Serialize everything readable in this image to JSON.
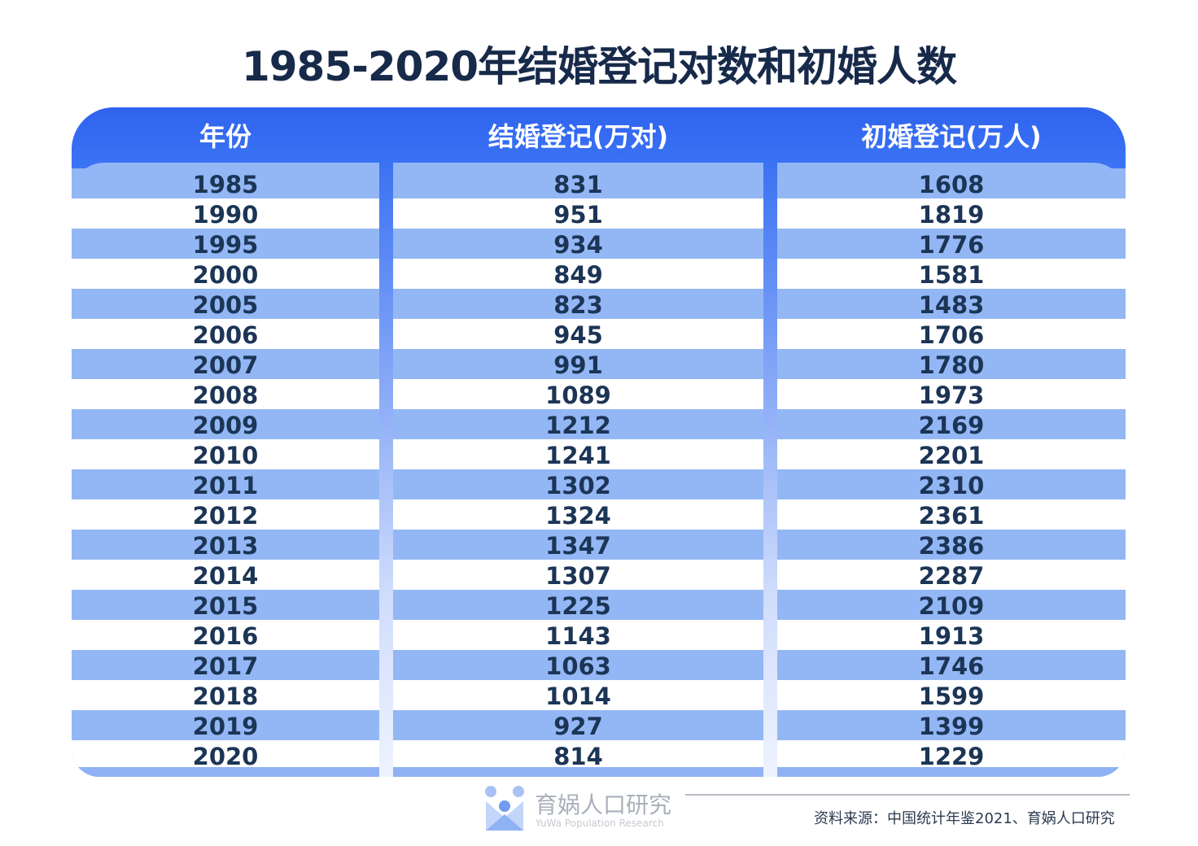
{
  "title": "1985-2020年结婚登记对数和初婚人数",
  "chart_data": {
    "type": "table",
    "title": "1985-2020年结婚登记对数和初婚人数",
    "columns": [
      "年份",
      "结婚登记(万对)",
      "初婚登记(万人)"
    ],
    "rows": [
      [
        "1985",
        "831",
        "1608"
      ],
      [
        "1990",
        "951",
        "1819"
      ],
      [
        "1995",
        "934",
        "1776"
      ],
      [
        "2000",
        "849",
        "1581"
      ],
      [
        "2005",
        "823",
        "1483"
      ],
      [
        "2006",
        "945",
        "1706"
      ],
      [
        "2007",
        "991",
        "1780"
      ],
      [
        "2008",
        "1089",
        "1973"
      ],
      [
        "2009",
        "1212",
        "2169"
      ],
      [
        "2010",
        "1241",
        "2201"
      ],
      [
        "2011",
        "1302",
        "2310"
      ],
      [
        "2012",
        "1324",
        "2361"
      ],
      [
        "2013",
        "1347",
        "2386"
      ],
      [
        "2014",
        "1307",
        "2287"
      ],
      [
        "2015",
        "1225",
        "2109"
      ],
      [
        "2016",
        "1143",
        "1913"
      ],
      [
        "2017",
        "1063",
        "1746"
      ],
      [
        "2018",
        "1014",
        "1599"
      ],
      [
        "2019",
        "927",
        "1399"
      ],
      [
        "2020",
        "814",
        "1229"
      ]
    ]
  },
  "colors": {
    "header": "#3b72f2",
    "stripe": "#93b7f5",
    "text": "#1c3556"
  },
  "footer": {
    "brand": "育娲人口研究",
    "brand_en": "YuWa Population Research",
    "source": "资料来源：中国统计年鉴2021、育娲人口研究"
  }
}
